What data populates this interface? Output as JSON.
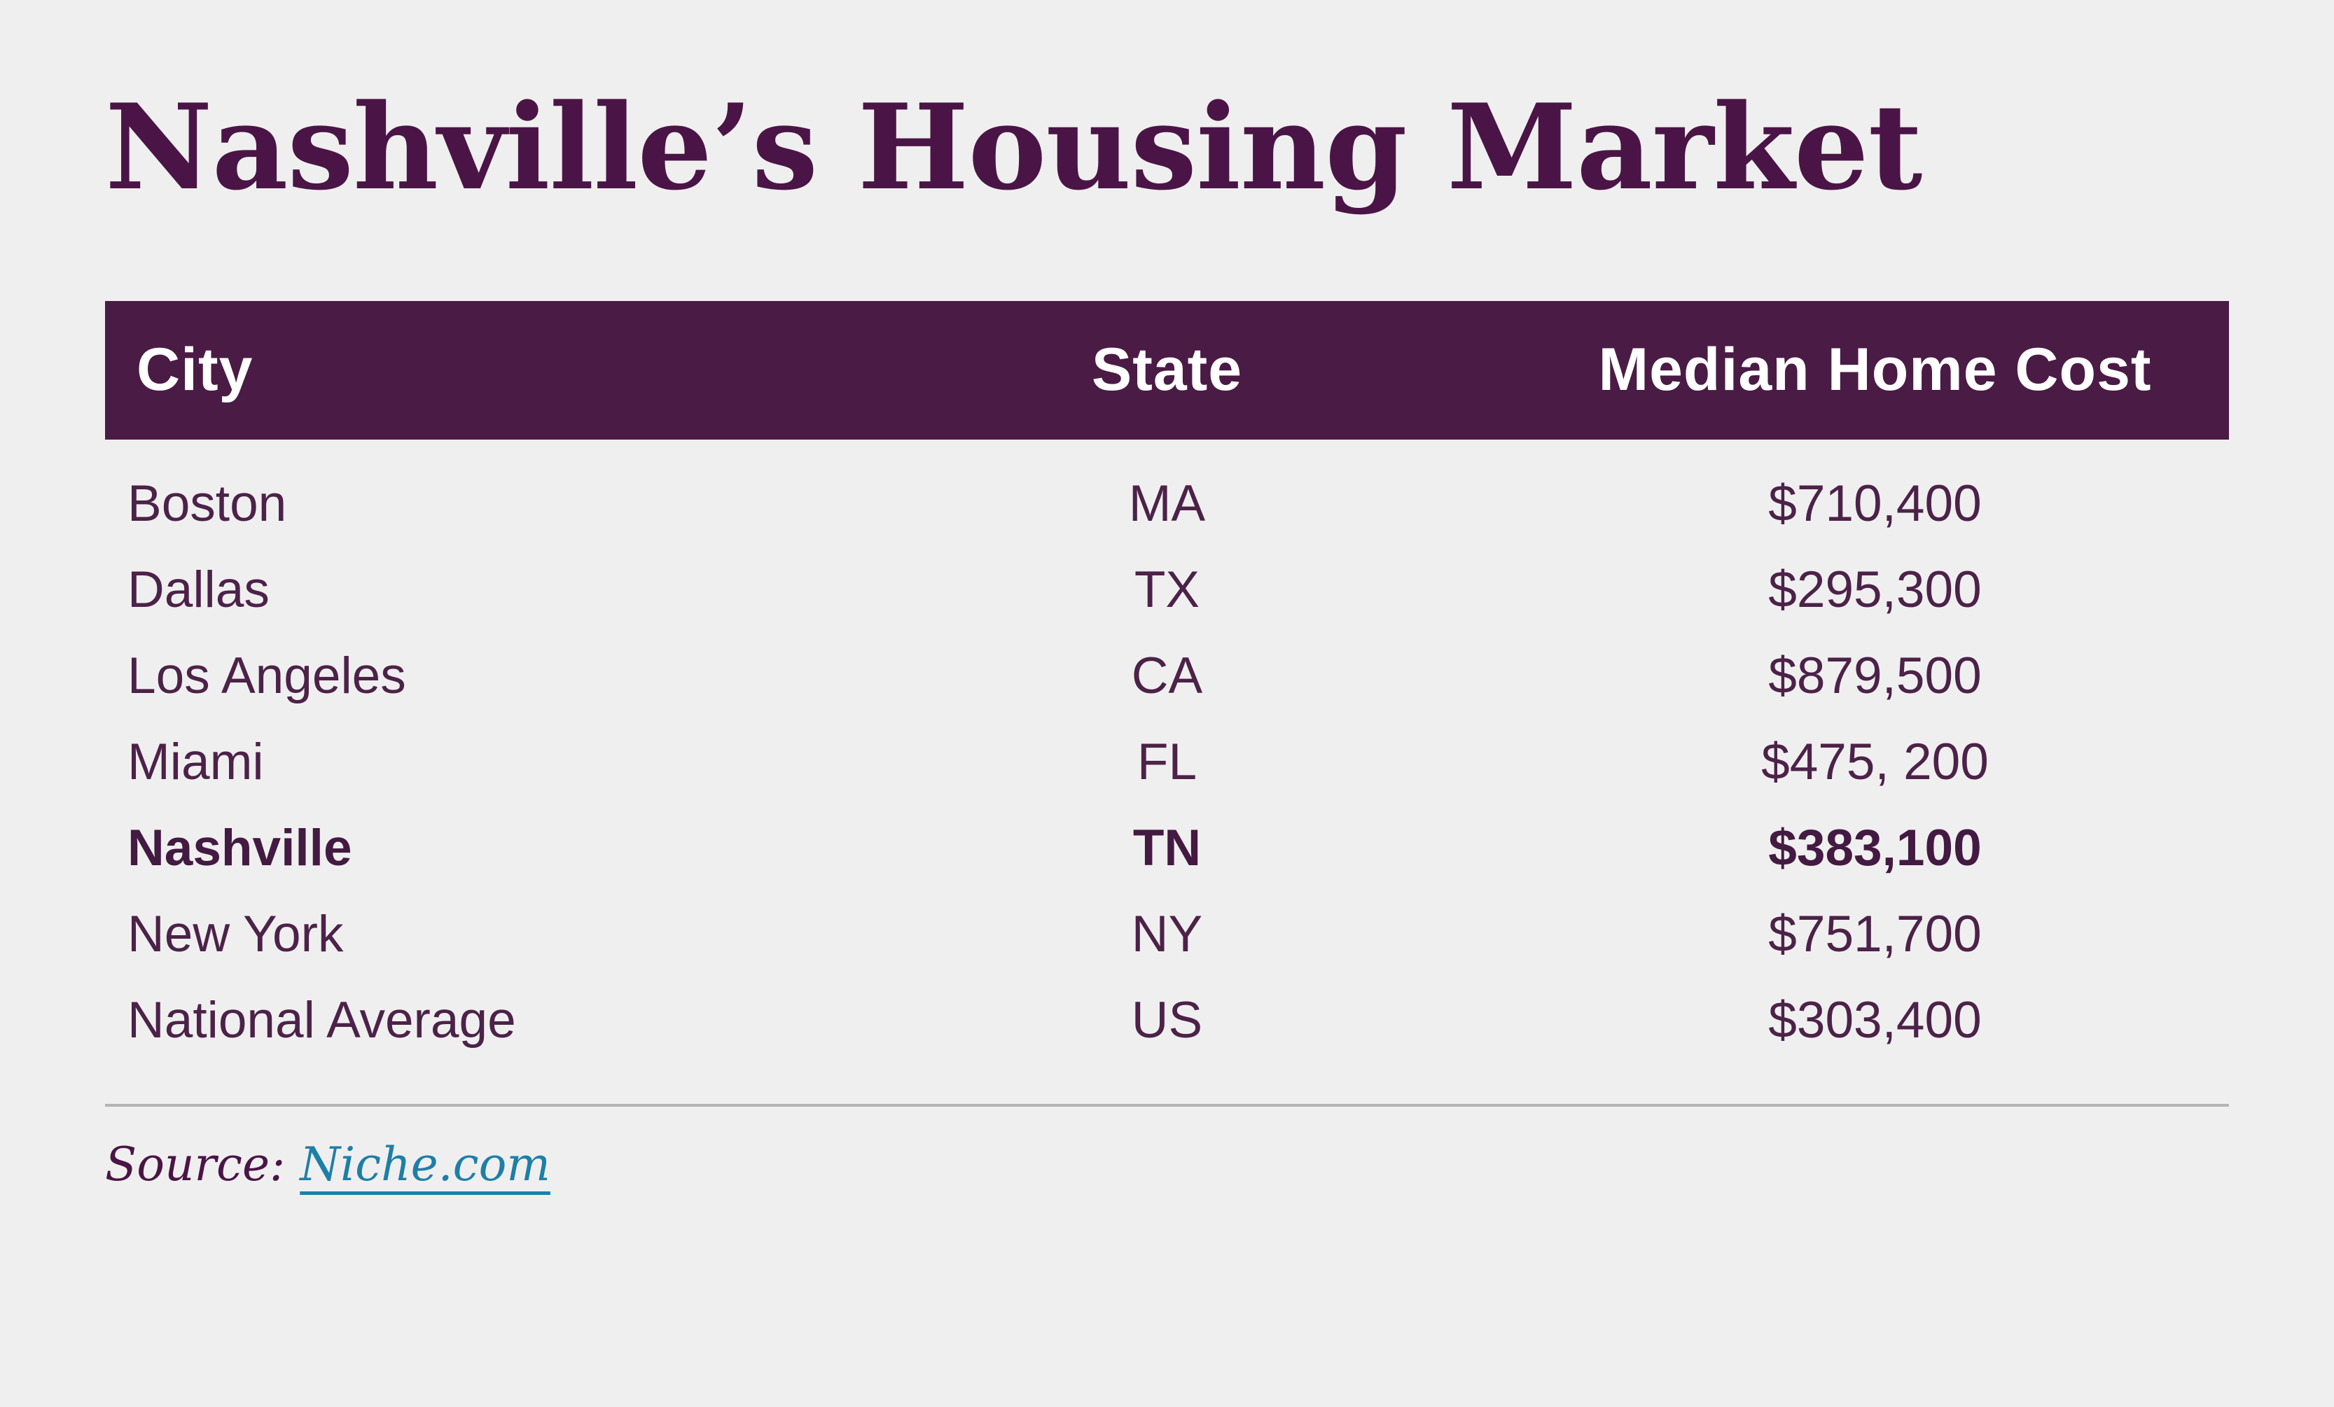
{
  "title": "Nashville’s Housing Market",
  "chart_data": {
    "type": "table",
    "title": "Nashville’s Housing Market",
    "columns": [
      "City",
      "State",
      "Median Home Cost"
    ],
    "rows": [
      [
        "Boston",
        "MA",
        "$710,400"
      ],
      [
        "Dallas",
        "TX",
        "$295,300"
      ],
      [
        "Los Angeles",
        "CA",
        "$879,500"
      ],
      [
        "Miami",
        "FL",
        "$475, 200"
      ],
      [
        "Nashville",
        "TN",
        "$383,100"
      ],
      [
        "New York",
        "NY",
        "$751,700"
      ],
      [
        "National Average",
        "US",
        "$303,400"
      ]
    ],
    "highlighted_row_index": 4,
    "highlighted_row": "Nashville",
    "source": "Niche.com"
  },
  "source_line": {
    "label": "Source:",
    "link_text": "Niche.com"
  },
  "colors": {
    "background": "#f0efef",
    "header_bg": "#4a1b45",
    "header_text": "#ffffff",
    "title_text": "#4a1546",
    "row_text": "#4c2249",
    "highlight_text": "#431a42",
    "link": "#1d7fa8",
    "divider": "#b4b4b4"
  }
}
